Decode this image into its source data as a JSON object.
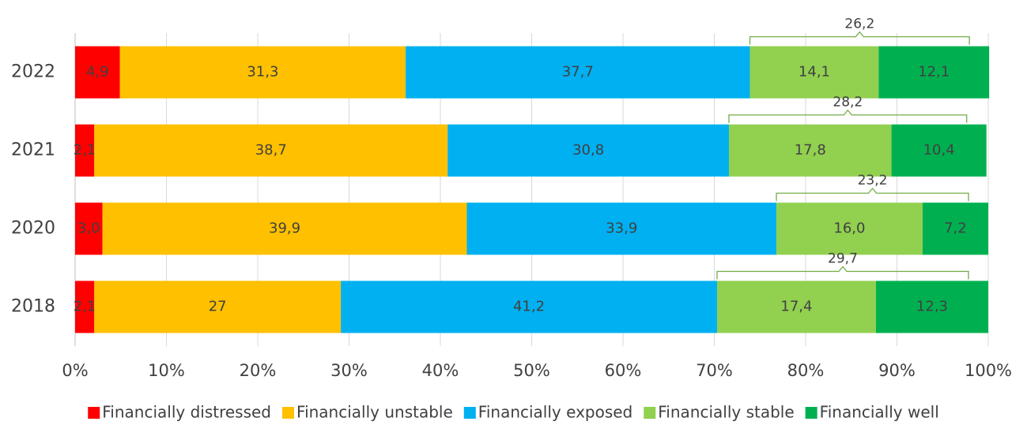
{
  "chart_data": {
    "type": "stacked-barh",
    "categories": [
      "2022",
      "2021",
      "2020",
      "2018"
    ],
    "series": [
      {
        "name": "Financially distressed",
        "color": "#ff0000",
        "values": [
          4.9,
          2.1,
          3.0,
          2.1
        ],
        "value_labels": [
          "4,9",
          "2,1",
          "3,0",
          "2,1"
        ]
      },
      {
        "name": "Financially unstable",
        "color": "#ffc000",
        "values": [
          31.3,
          38.7,
          39.9,
          27
        ],
        "value_labels": [
          "31,3",
          "38,7",
          "39,9",
          "27"
        ]
      },
      {
        "name": "Financially exposed",
        "color": "#00b0f0",
        "values": [
          37.7,
          30.8,
          33.9,
          41.2
        ],
        "value_labels": [
          "37,7",
          "30,8",
          "33,9",
          "41,2"
        ]
      },
      {
        "name": "Financially stable",
        "color": "#92d050",
        "values": [
          14.1,
          17.8,
          16.0,
          17.4
        ],
        "value_labels": [
          "14,1",
          "17,8",
          "16,0",
          "17,4"
        ]
      },
      {
        "name": "Financially well",
        "color": "#00b050",
        "values": [
          12.1,
          10.4,
          7.2,
          12.3
        ],
        "value_labels": [
          "12,1",
          "10,4",
          "7,2",
          "12,3"
        ]
      }
    ],
    "annotations": [
      {
        "value": 26.2,
        "label": "26,2"
      },
      {
        "value": 28.2,
        "label": "28,2"
      },
      {
        "value": 23.2,
        "label": "23,2"
      },
      {
        "value": 29.7,
        "label": "29,7"
      }
    ],
    "xlim": [
      0,
      100
    ],
    "xticks": [
      {
        "value": 0,
        "label": "0%"
      },
      {
        "value": 10,
        "label": "10%"
      },
      {
        "value": 20,
        "label": "20%"
      },
      {
        "value": 30,
        "label": "30%"
      },
      {
        "value": 40,
        "label": "40%"
      },
      {
        "value": 50,
        "label": "50%"
      },
      {
        "value": 60,
        "label": "60%"
      },
      {
        "value": 70,
        "label": "70%"
      },
      {
        "value": 80,
        "label": "80%"
      },
      {
        "value": 90,
        "label": "90%"
      },
      {
        "value": 100,
        "label": "100%"
      }
    ],
    "grid": true,
    "legend": "bottom"
  }
}
